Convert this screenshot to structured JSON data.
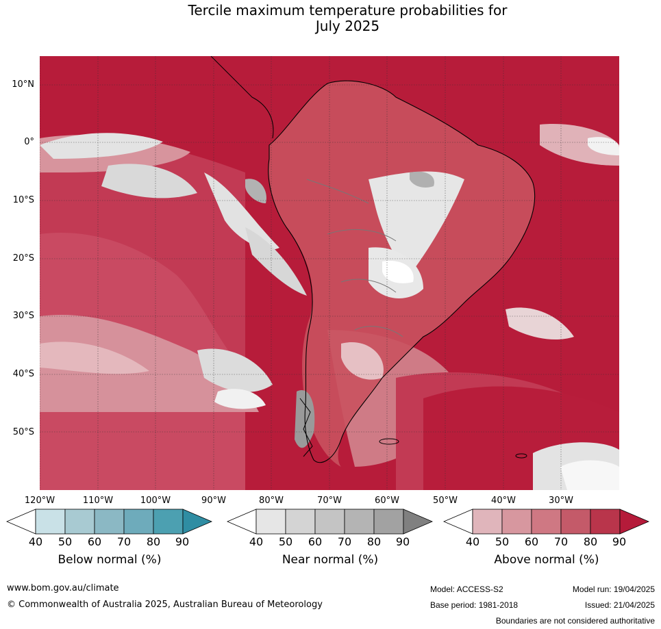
{
  "title_line1": "Tercile maximum temperature probabilities for",
  "title_line2": "July 2025",
  "lat_labels": [
    "10°N",
    "0°",
    "10°S",
    "20°S",
    "30°S",
    "40°S",
    "50°S"
  ],
  "lon_labels": [
    "120°W",
    "110°W",
    "100°W",
    "90°W",
    "80°W",
    "70°W",
    "60°W",
    "50°W",
    "40°W",
    "30°W"
  ],
  "colorbars": {
    "below": {
      "label": "Below normal (%)",
      "ticks": [
        "40",
        "50",
        "60",
        "70",
        "80",
        "90"
      ],
      "colors": [
        "#ffffff",
        "#c9e1e7",
        "#a8cad2",
        "#8bb8c4",
        "#6eabbb",
        "#4ca0b1",
        "#2f8da3"
      ]
    },
    "near": {
      "label": "Near normal (%)",
      "ticks": [
        "40",
        "50",
        "60",
        "70",
        "80",
        "90"
      ],
      "colors": [
        "#ffffff",
        "#e6e6e6",
        "#d4d4d4",
        "#c4c4c4",
        "#b4b4b4",
        "#a2a2a2",
        "#808080"
      ]
    },
    "above": {
      "label": "Above normal (%)",
      "ticks": [
        "40",
        "50",
        "60",
        "70",
        "80",
        "90"
      ],
      "colors": [
        "#ffffff",
        "#e0b5bb",
        "#d7979f",
        "#cf7883",
        "#c45a69",
        "#b9354b",
        "#b51b3a"
      ]
    }
  },
  "footer": {
    "url": "www.bom.gov.au/climate",
    "copyright": "© Commonwealth of Australia 2025, Australian Bureau of Meteorology",
    "model": "Model: ACCESS-S2",
    "base_period": "Base period: 1981-2018",
    "model_run": "Model run: 19/04/2025",
    "issued": "Issued: 21/04/2025",
    "disclaimer": "Boundaries are not considered authoritative"
  }
}
